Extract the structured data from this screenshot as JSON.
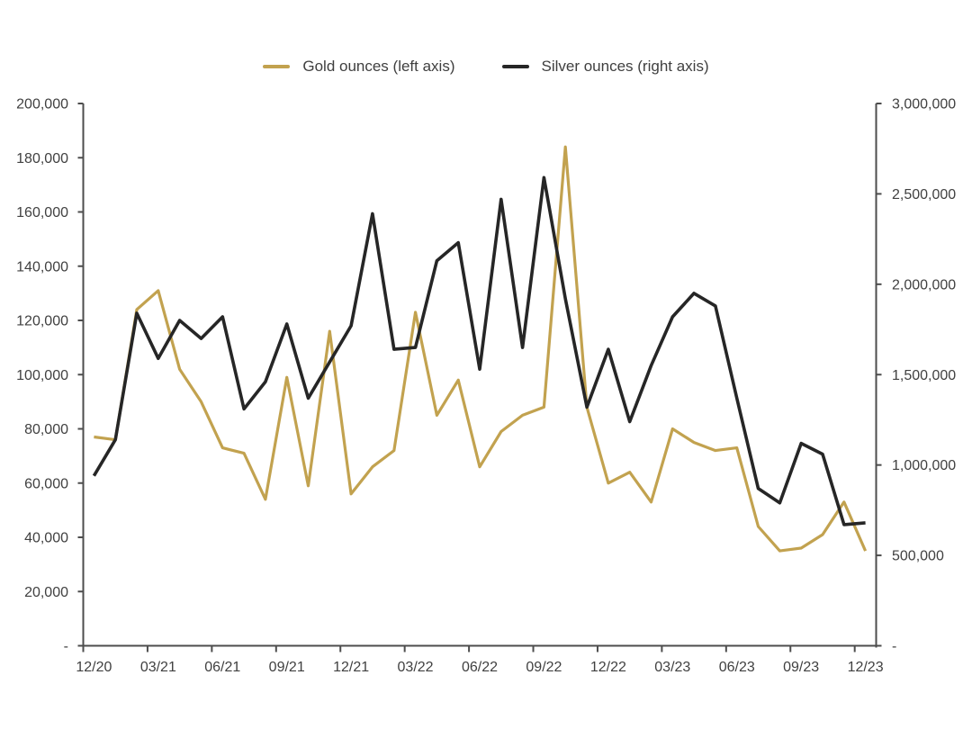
{
  "legend": {
    "items": [
      {
        "label": "Gold ounces (left axis)",
        "color": "#C2A24F"
      },
      {
        "label": "Silver ounces (right axis)",
        "color": "#262626"
      }
    ]
  },
  "chart_data": {
    "type": "line",
    "title": "",
    "grid": false,
    "legend_position": "top-center",
    "months": [
      "12/20",
      "01/21",
      "02/21",
      "03/21",
      "04/21",
      "05/21",
      "06/21",
      "07/21",
      "08/21",
      "09/21",
      "10/21",
      "11/21",
      "12/21",
      "01/22",
      "02/22",
      "03/22",
      "04/22",
      "05/22",
      "06/22",
      "07/22",
      "08/22",
      "09/22",
      "10/22",
      "11/22",
      "12/22",
      "01/23",
      "02/23",
      "03/23",
      "04/23",
      "05/23",
      "06/23",
      "07/23",
      "08/23",
      "09/23",
      "10/23",
      "11/23",
      "12/23"
    ],
    "x_tick_labels": [
      "12/20",
      "03/21",
      "06/21",
      "09/21",
      "12/21",
      "03/22",
      "06/22",
      "09/22",
      "12/22",
      "03/23",
      "06/23",
      "09/23",
      "12/23"
    ],
    "left_axis": {
      "range": [
        0,
        200000
      ],
      "step": 20000,
      "tick_labels": [
        "200,000",
        "180,000",
        "160,000",
        "140,000",
        "120,000",
        "100,000",
        "80,000",
        "60,000",
        "40,000",
        "20,000",
        "-"
      ]
    },
    "right_axis": {
      "range": [
        0,
        3000000
      ],
      "step": 500000,
      "tick_labels": [
        "3,000,000",
        "2,500,000",
        "2,000,000",
        "1,500,000",
        "1,000,000",
        "500,000",
        "-"
      ]
    },
    "series": [
      {
        "name": "Gold ounces (left axis)",
        "axis": "left",
        "color": "#C2A24F",
        "values": [
          77000,
          76000,
          124000,
          131000,
          102000,
          90000,
          73000,
          71000,
          54000,
          99000,
          59000,
          116000,
          56000,
          66000,
          72000,
          123000,
          85000,
          98000,
          66000,
          79000,
          85000,
          88000,
          184000,
          88000,
          60000,
          64000,
          53000,
          80000,
          75000,
          72000,
          73000,
          44000,
          35000,
          36000,
          41000,
          53000,
          35000
        ]
      },
      {
        "name": "Silver ounces (right axis)",
        "axis": "right",
        "color": "#262626",
        "values": [
          940000,
          1140000,
          1840000,
          1590000,
          1800000,
          1700000,
          1820000,
          1310000,
          1460000,
          1780000,
          1370000,
          1570000,
          1770000,
          2390000,
          1640000,
          1650000,
          2130000,
          2230000,
          1530000,
          2470000,
          1650000,
          2590000,
          1920000,
          1320000,
          1640000,
          1240000,
          1550000,
          1820000,
          1950000,
          1880000,
          1370000,
          870000,
          790000,
          1120000,
          1060000,
          670000,
          680000
        ]
      }
    ]
  }
}
